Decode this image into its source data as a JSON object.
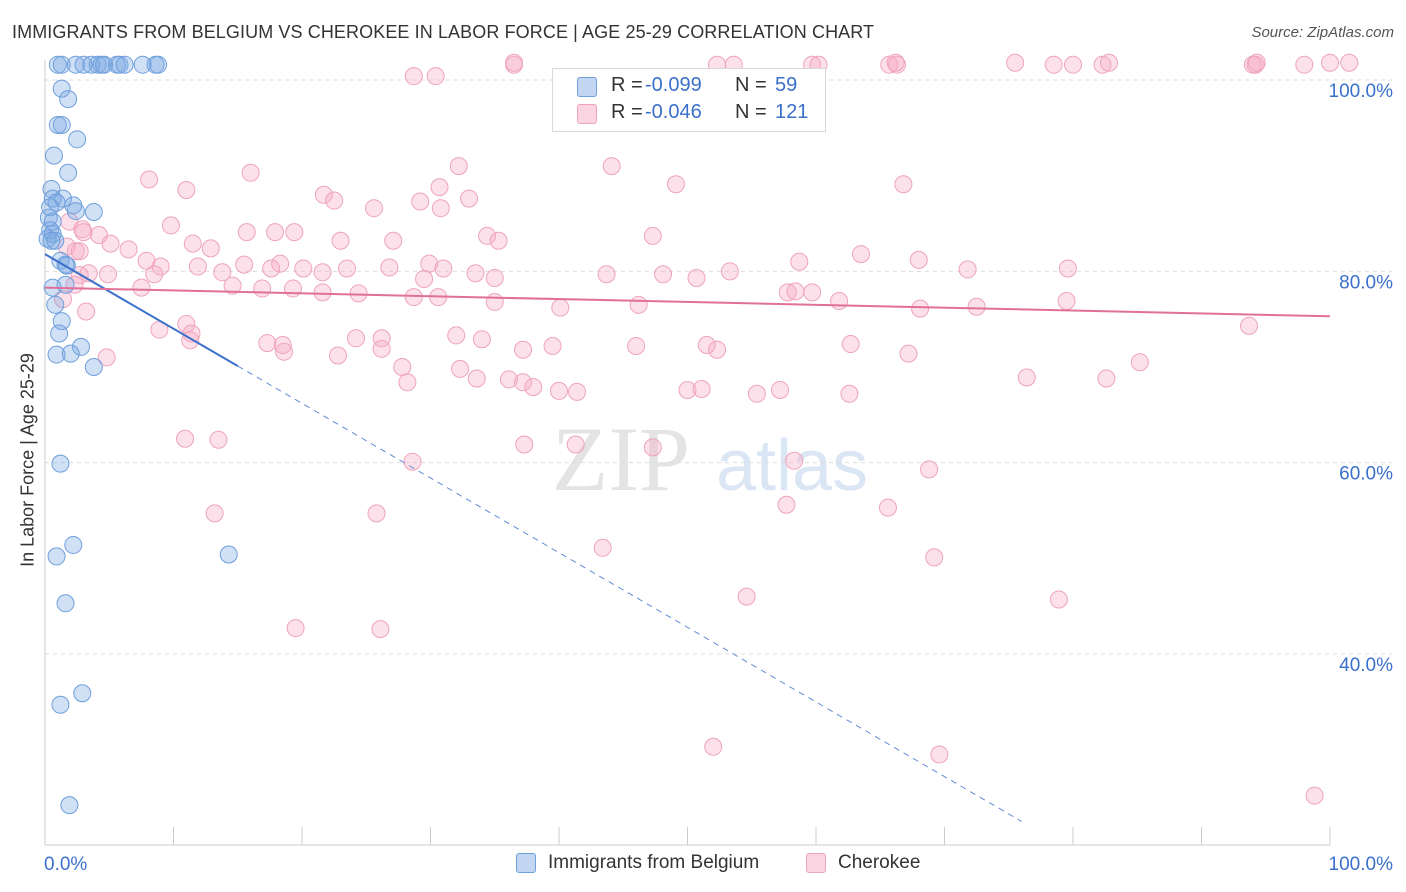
{
  "title": "IMMIGRANTS FROM BELGIUM VS CHEROKEE IN LABOR FORCE | AGE 25-29 CORRELATION CHART",
  "source": "Source: ZipAtlas.com",
  "watermark": {
    "zip": "ZIP",
    "atlas": "atlas"
  },
  "legend_top": [
    {
      "r_label": "R =",
      "r_value": "-0.099",
      "n_label": "N =",
      "n_value": "59"
    },
    {
      "r_label": "R =",
      "r_value": "-0.046",
      "n_label": "N =",
      "n_value": "121"
    }
  ],
  "colors": {
    "belgium_fill": "rgba(120,165,225,0.35)",
    "belgium_stroke": "#6f9fdc",
    "belgium_line": "#3a70cc",
    "cherokee_fill": "rgba(245,170,195,0.35)",
    "cherokee_stroke": "#eea3bd",
    "cherokee_line": "#e0709a",
    "axis_label": "#3a70cc",
    "grid": "#dddddd"
  },
  "chart_data": {
    "type": "scatter",
    "title": "IMMIGRANTS FROM BELGIUM VS CHEROKEE IN LABOR FORCE | AGE 25-29 CORRELATION CHART",
    "xlabel": "",
    "ylabel": "In Labor Force | Age 25-29",
    "xlim": [
      0,
      100
    ],
    "ylim": [
      20.5,
      102
    ],
    "x_tick_labels": [
      "0.0%",
      "100.0%"
    ],
    "y_tick_values": [
      100,
      80,
      60,
      40
    ],
    "y_tick_labels": [
      "100.0%",
      "80.0%",
      "60.0%",
      "40.0%"
    ],
    "legend": [
      "Immigrants from Belgium",
      "Cherokee"
    ],
    "series": [
      {
        "name": "Immigrants from Belgium",
        "R": -0.099,
        "N": 59,
        "trend": {
          "x0": 0,
          "y0": 81.8,
          "x1": 15,
          "y1": 70.1,
          "dashed_to_x": 76,
          "dashed_to_y": 22.5
        },
        "points": [
          [
            1.0,
            101.6
          ],
          [
            1.3,
            101.6
          ],
          [
            2.4,
            101.6
          ],
          [
            3.0,
            101.6
          ],
          [
            3.6,
            101.6
          ],
          [
            4.1,
            101.6
          ],
          [
            4.4,
            101.6
          ],
          [
            4.6,
            101.6
          ],
          [
            5.6,
            101.6
          ],
          [
            5.8,
            101.6
          ],
          [
            6.2,
            101.6
          ],
          [
            7.6,
            101.6
          ],
          [
            8.6,
            101.6
          ],
          [
            8.8,
            101.6
          ],
          [
            1.3,
            99.1
          ],
          [
            1.8,
            98.0
          ],
          [
            1.0,
            95.3
          ],
          [
            1.3,
            95.3
          ],
          [
            2.5,
            93.8
          ],
          [
            0.7,
            92.1
          ],
          [
            1.8,
            90.3
          ],
          [
            0.5,
            88.6
          ],
          [
            0.6,
            87.6
          ],
          [
            1.4,
            87.6
          ],
          [
            0.9,
            87.2
          ],
          [
            0.4,
            86.7
          ],
          [
            2.2,
            86.9
          ],
          [
            2.4,
            86.3
          ],
          [
            3.8,
            86.2
          ],
          [
            0.3,
            85.6
          ],
          [
            0.6,
            85.2
          ],
          [
            0.4,
            84.3
          ],
          [
            0.6,
            83.9
          ],
          [
            0.2,
            83.4
          ],
          [
            0.5,
            83.2
          ],
          [
            0.8,
            83.2
          ],
          [
            1.2,
            81.1
          ],
          [
            1.6,
            80.7
          ],
          [
            1.7,
            80.6
          ],
          [
            1.6,
            78.6
          ],
          [
            0.6,
            78.3
          ],
          [
            0.8,
            76.5
          ],
          [
            1.3,
            74.8
          ],
          [
            1.1,
            73.5
          ],
          [
            2.8,
            72.1
          ],
          [
            0.9,
            71.3
          ],
          [
            2.0,
            71.4
          ],
          [
            3.8,
            70.0
          ],
          [
            1.2,
            59.9
          ],
          [
            2.2,
            51.4
          ],
          [
            0.9,
            50.2
          ],
          [
            14.3,
            50.4
          ],
          [
            1.6,
            45.3
          ],
          [
            2.9,
            35.9
          ],
          [
            1.2,
            34.7
          ],
          [
            1.9,
            24.2
          ]
        ]
      },
      {
        "name": "Cherokee",
        "R": -0.046,
        "N": 121,
        "trend": {
          "x0": 0,
          "y0": 78.3,
          "x1": 100,
          "y1": 75.3
        },
        "points": [
          [
            36.5,
            101.6
          ],
          [
            52.3,
            101.6
          ],
          [
            53.6,
            101.6
          ],
          [
            59.7,
            101.6
          ],
          [
            60.2,
            101.6
          ],
          [
            65.7,
            101.6
          ],
          [
            66.3,
            101.6
          ],
          [
            78.5,
            101.6
          ],
          [
            80.0,
            101.6
          ],
          [
            82.3,
            101.6
          ],
          [
            94.0,
            101.6
          ],
          [
            94.2,
            101.6
          ],
          [
            98.0,
            101.6
          ],
          [
            28.7,
            100.4
          ],
          [
            36.5,
            101.8
          ],
          [
            66.2,
            101.8
          ],
          [
            75.5,
            101.8
          ],
          [
            82.8,
            101.8
          ],
          [
            94.3,
            101.8
          ],
          [
            100.0,
            101.8
          ],
          [
            101.5,
            101.8
          ],
          [
            30.4,
            100.4
          ],
          [
            32.2,
            91.0
          ],
          [
            44.1,
            91.0
          ],
          [
            49.1,
            89.1
          ],
          [
            66.8,
            89.1
          ],
          [
            30.7,
            88.8
          ],
          [
            33.0,
            87.6
          ],
          [
            29.2,
            87.3
          ],
          [
            30.8,
            86.6
          ],
          [
            8.1,
            89.6
          ],
          [
            11.0,
            88.5
          ],
          [
            16.0,
            90.3
          ],
          [
            21.7,
            88.0
          ],
          [
            22.5,
            87.4
          ],
          [
            25.6,
            86.6
          ],
          [
            1.9,
            85.2
          ],
          [
            2.9,
            84.4
          ],
          [
            3.0,
            84.1
          ],
          [
            9.8,
            84.8
          ],
          [
            15.7,
            84.1
          ],
          [
            17.9,
            84.1
          ],
          [
            19.4,
            84.1
          ],
          [
            23.0,
            83.2
          ],
          [
            27.1,
            83.2
          ],
          [
            34.4,
            83.7
          ],
          [
            35.3,
            83.2
          ],
          [
            47.3,
            83.7
          ],
          [
            4.2,
            83.8
          ],
          [
            5.1,
            82.9
          ],
          [
            11.5,
            82.9
          ],
          [
            12.9,
            82.4
          ],
          [
            1.7,
            82.6
          ],
          [
            2.4,
            82.1
          ],
          [
            2.7,
            82.1
          ],
          [
            6.5,
            82.3
          ],
          [
            7.9,
            81.1
          ],
          [
            9.0,
            80.5
          ],
          [
            11.9,
            80.5
          ],
          [
            15.5,
            80.7
          ],
          [
            18.3,
            80.8
          ],
          [
            20.1,
            80.3
          ],
          [
            23.5,
            80.3
          ],
          [
            29.9,
            80.8
          ],
          [
            31.0,
            80.3
          ],
          [
            33.5,
            79.8
          ],
          [
            35.0,
            79.3
          ],
          [
            43.7,
            79.7
          ],
          [
            48.1,
            79.7
          ],
          [
            50.7,
            79.3
          ],
          [
            53.3,
            80.0
          ],
          [
            58.7,
            81.0
          ],
          [
            63.5,
            81.8
          ],
          [
            68.0,
            81.2
          ],
          [
            71.8,
            80.2
          ],
          [
            79.6,
            80.3
          ],
          [
            2.7,
            79.6
          ],
          [
            3.4,
            79.8
          ],
          [
            4.9,
            79.7
          ],
          [
            8.5,
            79.7
          ],
          [
            13.8,
            79.9
          ],
          [
            17.6,
            80.3
          ],
          [
            21.6,
            79.9
          ],
          [
            26.8,
            80.4
          ],
          [
            29.5,
            79.2
          ],
          [
            2.3,
            78.6
          ],
          [
            7.5,
            78.3
          ],
          [
            14.6,
            78.5
          ],
          [
            16.9,
            78.2
          ],
          [
            19.3,
            78.2
          ],
          [
            21.6,
            77.8
          ],
          [
            24.4,
            77.7
          ],
          [
            28.7,
            77.3
          ],
          [
            30.6,
            77.3
          ],
          [
            35.0,
            76.8
          ],
          [
            40.1,
            76.2
          ],
          [
            46.2,
            76.5
          ],
          [
            57.8,
            77.8
          ],
          [
            58.4,
            77.9
          ],
          [
            59.7,
            77.8
          ],
          [
            61.8,
            76.9
          ],
          [
            68.1,
            76.1
          ],
          [
            72.5,
            76.3
          ],
          [
            79.5,
            76.9
          ],
          [
            93.7,
            74.3
          ],
          [
            1.4,
            77.1
          ],
          [
            3.2,
            75.8
          ],
          [
            8.9,
            73.9
          ],
          [
            11.0,
            74.5
          ],
          [
            11.4,
            73.5
          ],
          [
            24.2,
            73.0
          ],
          [
            26.2,
            73.0
          ],
          [
            32.0,
            73.3
          ],
          [
            34.0,
            72.9
          ],
          [
            39.5,
            72.2
          ],
          [
            46.0,
            72.2
          ],
          [
            51.5,
            72.3
          ],
          [
            52.3,
            71.8
          ],
          [
            37.2,
            71.8
          ],
          [
            62.7,
            72.4
          ],
          [
            67.2,
            71.4
          ],
          [
            85.2,
            70.5
          ],
          [
            27.8,
            70.0
          ],
          [
            32.3,
            69.8
          ],
          [
            36.1,
            68.7
          ],
          [
            37.2,
            68.4
          ],
          [
            38.0,
            67.9
          ],
          [
            40.0,
            67.5
          ],
          [
            41.4,
            67.4
          ],
          [
            50.0,
            67.6
          ],
          [
            51.1,
            67.7
          ],
          [
            55.4,
            67.2
          ],
          [
            57.2,
            67.6
          ],
          [
            28.2,
            68.4
          ],
          [
            33.6,
            68.8
          ],
          [
            62.6,
            67.2
          ],
          [
            76.4,
            68.9
          ],
          [
            82.6,
            68.8
          ],
          [
            4.8,
            71.0
          ],
          [
            11.3,
            72.8
          ],
          [
            17.3,
            72.5
          ],
          [
            18.5,
            72.3
          ],
          [
            18.6,
            71.6
          ],
          [
            22.8,
            71.2
          ],
          [
            26.2,
            71.9
          ],
          [
            10.9,
            62.5
          ],
          [
            13.5,
            62.4
          ],
          [
            28.6,
            60.1
          ],
          [
            37.3,
            61.9
          ],
          [
            41.3,
            61.9
          ],
          [
            47.3,
            61.6
          ],
          [
            58.3,
            60.2
          ],
          [
            68.8,
            59.3
          ],
          [
            13.2,
            54.7
          ],
          [
            25.8,
            54.7
          ],
          [
            43.4,
            51.1
          ],
          [
            57.7,
            55.6
          ],
          [
            65.6,
            55.3
          ],
          [
            69.2,
            50.1
          ],
          [
            54.6,
            46.0
          ],
          [
            19.5,
            42.7
          ],
          [
            26.1,
            42.6
          ],
          [
            78.9,
            45.7
          ],
          [
            52.0,
            30.3
          ],
          [
            69.6,
            29.5
          ],
          [
            98.8,
            25.2
          ]
        ]
      }
    ]
  }
}
